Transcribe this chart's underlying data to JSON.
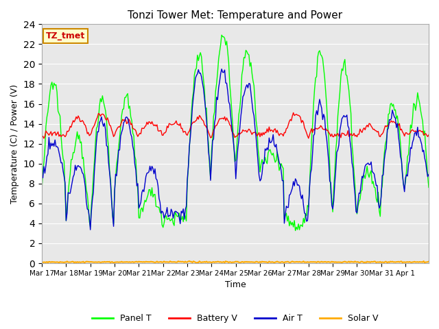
{
  "title": "Tonzi Tower Met: Temperature and Power",
  "xlabel": "Time",
  "ylabel": "Temperature (C) / Power (V)",
  "ylim": [
    0,
    24
  ],
  "bg_color": "#e8e8e8",
  "panel_t_color": "#00ff00",
  "battery_v_color": "#ff0000",
  "air_t_color": "#0000cc",
  "solar_v_color": "#ffaa00",
  "legend_labels": [
    "Panel T",
    "Battery V",
    "Air T",
    "Solar V"
  ],
  "label_box_text": "TZ_tmet",
  "label_box_facecolor": "#ffffcc",
  "label_box_edgecolor": "#cc8800",
  "label_box_textcolor": "#cc0000",
  "xtick_labels": [
    "Mar 17",
    "Mar 18",
    "Mar 19",
    "Mar 20",
    "Mar 21",
    "Mar 22",
    "Mar 23",
    "Mar 24",
    "Mar 25",
    "Mar 26",
    "Mar 27",
    "Mar 28",
    "Mar 29",
    "Mar 30",
    "Mar 31",
    "Apr 1"
  ]
}
